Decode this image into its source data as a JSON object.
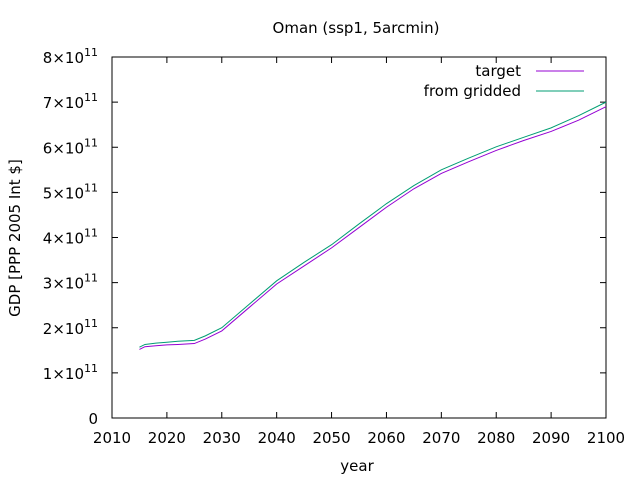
{
  "chart_data": {
    "type": "line",
    "title": "Oman (ssp1, 5arcmin)",
    "xlabel": "year",
    "ylabel": "GDP [PPP 2005 Int $]",
    "xlim": [
      2010,
      2100
    ],
    "ylim": [
      0,
      800000000000
    ],
    "xticks": [
      2010,
      2020,
      2030,
      2040,
      2050,
      2060,
      2070,
      2080,
      2090,
      2100
    ],
    "yticks": [
      {
        "value": 0,
        "mantissa": "0",
        "exponent": ""
      },
      {
        "value": 100000000000,
        "mantissa": "1×10",
        "exponent": "11"
      },
      {
        "value": 200000000000,
        "mantissa": "2×10",
        "exponent": "11"
      },
      {
        "value": 300000000000,
        "mantissa": "3×10",
        "exponent": "11"
      },
      {
        "value": 400000000000,
        "mantissa": "4×10",
        "exponent": "11"
      },
      {
        "value": 500000000000,
        "mantissa": "5×10",
        "exponent": "11"
      },
      {
        "value": 600000000000,
        "mantissa": "6×10",
        "exponent": "11"
      },
      {
        "value": 700000000000,
        "mantissa": "7×10",
        "exponent": "11"
      },
      {
        "value": 800000000000,
        "mantissa": "8×10",
        "exponent": "11"
      }
    ],
    "legend_position": "top-right",
    "grid": false,
    "x": [
      2015,
      2016,
      2018,
      2020,
      2022,
      2025,
      2027,
      2030,
      2035,
      2040,
      2045,
      2050,
      2055,
      2060,
      2065,
      2070,
      2075,
      2080,
      2085,
      2090,
      2095,
      2100
    ],
    "series": [
      {
        "name": "target",
        "color": "#9400d3",
        "values": [
          152000000000,
          158000000000,
          160000000000,
          162000000000,
          163000000000,
          165000000000,
          175000000000,
          193000000000,
          245000000000,
          297000000000,
          337000000000,
          377000000000,
          422000000000,
          467000000000,
          508000000000,
          542000000000,
          568000000000,
          593000000000,
          615000000000,
          635000000000,
          660000000000,
          690000000000
        ]
      },
      {
        "name": "from gridded",
        "color": "#009e73",
        "values": [
          157000000000,
          163000000000,
          166000000000,
          168000000000,
          170000000000,
          172000000000,
          182000000000,
          200000000000,
          252000000000,
          304000000000,
          345000000000,
          384000000000,
          430000000000,
          475000000000,
          515000000000,
          550000000000,
          576000000000,
          601000000000,
          622000000000,
          643000000000,
          670000000000,
          700000000000
        ]
      }
    ]
  }
}
